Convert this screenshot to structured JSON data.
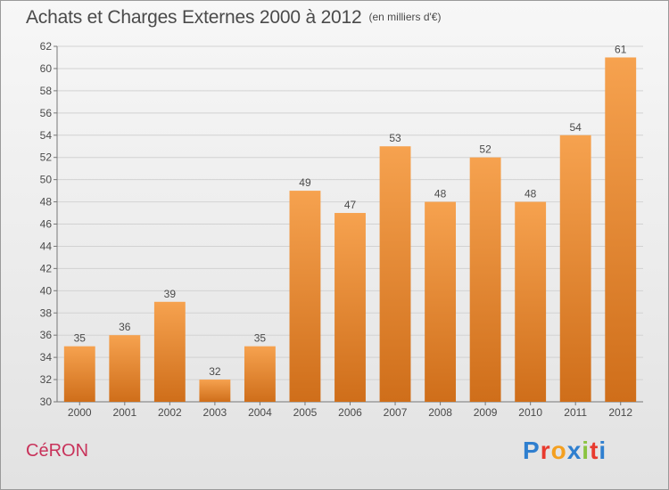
{
  "title": "Achats et Charges Externes 2000 à 2012",
  "unit_note": "(en milliers d'€)",
  "town": "CéRON",
  "logo_text": "Proxiti",
  "colors": {
    "bar_top": "#f6a24f",
    "bar_bottom": "#cf6e1a",
    "text": "#4a4a4a",
    "grid": "#d2d2d2",
    "town": "#c8325a",
    "logo": [
      "#2f7fcf",
      "#e83a2e",
      "#f4a020",
      "#2f7fcf",
      "#8ac33f",
      "#e83a2e",
      "#2f7fcf"
    ]
  },
  "chart_data": {
    "type": "bar",
    "categories": [
      "2000",
      "2001",
      "2002",
      "2003",
      "2004",
      "2005",
      "2006",
      "2007",
      "2008",
      "2009",
      "2010",
      "2011",
      "2012"
    ],
    "values": [
      35,
      36,
      39,
      32,
      35,
      49,
      47,
      53,
      48,
      52,
      48,
      54,
      61
    ],
    "ylim": [
      30,
      62
    ],
    "yticks": [
      30,
      32,
      34,
      36,
      38,
      40,
      42,
      44,
      46,
      48,
      50,
      52,
      54,
      56,
      58,
      60,
      62
    ],
    "grid": true,
    "data_labels": true
  }
}
